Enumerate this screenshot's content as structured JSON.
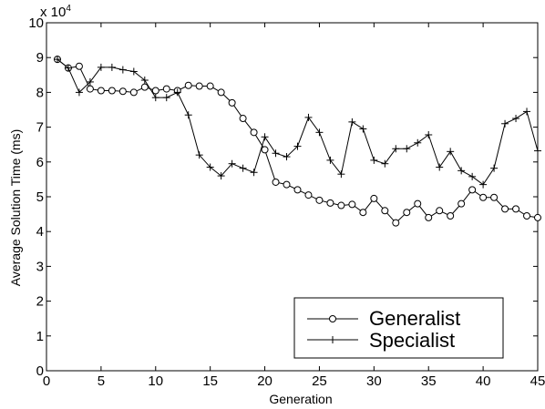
{
  "chart_data": {
    "type": "line",
    "xlabel": "Generation",
    "ylabel": "Average Solution Time (ms)",
    "y_multiplier": {
      "base": "x 10",
      "exponent": "4"
    },
    "xlim": [
      0,
      45
    ],
    "ylim": [
      0,
      10
    ],
    "xticks": [
      "0",
      "5",
      "10",
      "15",
      "20",
      "25",
      "30",
      "35",
      "40",
      "45"
    ],
    "yticks": [
      "0",
      "1",
      "2",
      "3",
      "4",
      "5",
      "6",
      "7",
      "8",
      "9",
      "10"
    ],
    "grid": false,
    "legend_position": "bottom-right",
    "x": [
      1,
      2,
      3,
      4,
      5,
      6,
      7,
      8,
      9,
      10,
      11,
      12,
      13,
      14,
      15,
      16,
      17,
      18,
      19,
      20,
      21,
      22,
      23,
      24,
      25,
      26,
      27,
      28,
      29,
      30,
      31,
      32,
      33,
      34,
      35,
      36,
      37,
      38,
      39,
      40,
      41,
      42,
      43,
      44,
      45
    ],
    "series": [
      {
        "name": "Generalist",
        "marker": "circle",
        "values": [
          8.95,
          8.7,
          8.75,
          8.1,
          8.05,
          8.05,
          8.03,
          8.0,
          8.15,
          8.05,
          8.1,
          8.05,
          8.2,
          8.18,
          8.18,
          8.0,
          7.7,
          7.25,
          6.85,
          6.35,
          5.42,
          5.35,
          5.2,
          5.05,
          4.9,
          4.82,
          4.75,
          4.78,
          4.55,
          4.95,
          4.6,
          4.25,
          4.55,
          4.8,
          4.4,
          4.6,
          4.45,
          4.8,
          5.2,
          4.98,
          4.98,
          4.65,
          4.65,
          4.45,
          4.4
        ]
      },
      {
        "name": "Specialist",
        "marker": "plus",
        "values": [
          8.95,
          8.7,
          8.0,
          8.3,
          8.72,
          8.72,
          8.65,
          8.6,
          8.35,
          7.85,
          7.85,
          8.0,
          7.35,
          6.2,
          5.85,
          5.6,
          5.95,
          5.82,
          5.7,
          6.72,
          6.25,
          6.15,
          6.45,
          7.28,
          6.85,
          6.05,
          5.65,
          7.15,
          6.95,
          6.05,
          5.95,
          6.38,
          6.38,
          6.55,
          6.78,
          5.85,
          6.3,
          5.75,
          5.58,
          5.35,
          5.82,
          7.1,
          7.25,
          7.45,
          6.32
        ]
      }
    ]
  }
}
